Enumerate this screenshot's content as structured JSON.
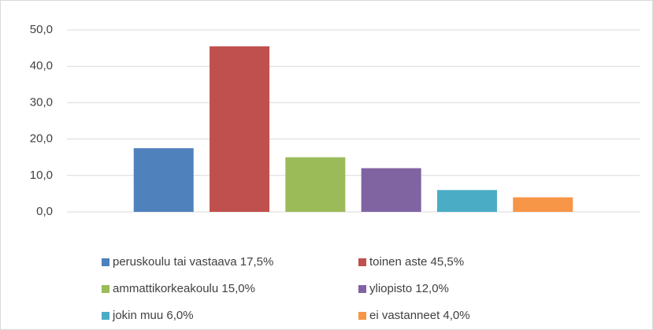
{
  "chart_data": {
    "type": "bar",
    "categories": [
      null
    ],
    "series": [
      {
        "name": "peruskoulu tai vastaava 17,5%",
        "color": "#4f81bd",
        "values": [
          17.5
        ]
      },
      {
        "name": "toinen aste 45,5%",
        "color": "#c0504d",
        "values": [
          45.5
        ]
      },
      {
        "name": "ammattikorkeakoulu 15,0%",
        "color": "#9bbb59",
        "values": [
          15.0
        ]
      },
      {
        "name": "yliopisto 12,0%",
        "color": "#8064a2",
        "values": [
          12.0
        ]
      },
      {
        "name": "jokin muu 6,0%",
        "color": "#4bacc6",
        "values": [
          6.0
        ]
      },
      {
        "name": "ei vastanneet 4,0%",
        "color": "#f79646",
        "values": [
          4.0
        ]
      }
    ],
    "ylim": [
      0,
      50
    ],
    "yticks": [
      {
        "value": 0,
        "label": "0,0"
      },
      {
        "value": 10,
        "label": "10,0"
      },
      {
        "value": 20,
        "label": "20,0"
      },
      {
        "value": 30,
        "label": "30,0"
      },
      {
        "value": 40,
        "label": "40,0"
      },
      {
        "value": 50,
        "label": "50,0"
      }
    ],
    "grid": true,
    "legend": "bottom"
  }
}
